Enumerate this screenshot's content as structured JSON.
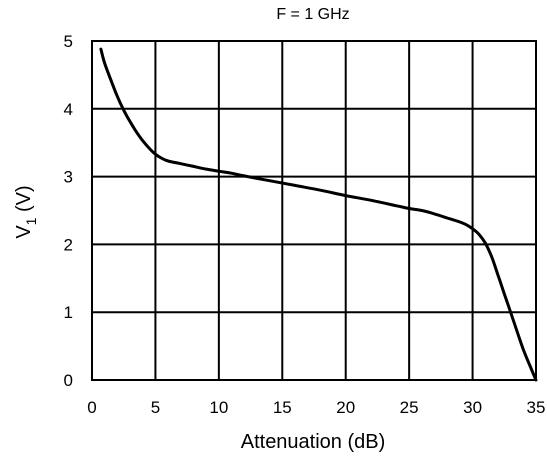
{
  "chart_data": {
    "type": "line",
    "title": "F = 1 GHz",
    "xlabel": "Attenuation (dB)",
    "ylabel": {
      "main": "V",
      "sub": "1",
      "unit": " (V)"
    },
    "xlim": [
      0,
      35
    ],
    "ylim": [
      0,
      5
    ],
    "grid": true,
    "x_ticks": [
      "0",
      "5",
      "10",
      "15",
      "20",
      "25",
      "30",
      "35"
    ],
    "y_ticks": [
      "0",
      "1",
      "2",
      "3",
      "4",
      "5"
    ],
    "series": [
      {
        "color": "#000000",
        "x": [
          0.7,
          1.0,
          1.5,
          2.0,
          2.5,
          3.0,
          3.5,
          4.0,
          4.5,
          5.0,
          5.5,
          6.0,
          7.0,
          8.0,
          9.0,
          10.0,
          11.0,
          12.0,
          14.0,
          16.0,
          18.0,
          20.0,
          22.0,
          24.0,
          25.0,
          26.0,
          27.0,
          28.0,
          29.0,
          29.5,
          30.0,
          30.5,
          31.0,
          31.5,
          32.0,
          32.5,
          33.0,
          33.5,
          34.0,
          34.5,
          35.0
        ],
        "y": [
          4.88,
          4.67,
          4.42,
          4.18,
          3.98,
          3.81,
          3.66,
          3.53,
          3.42,
          3.33,
          3.27,
          3.23,
          3.19,
          3.15,
          3.11,
          3.08,
          3.05,
          3.01,
          2.94,
          2.87,
          2.8,
          2.72,
          2.65,
          2.57,
          2.53,
          2.5,
          2.45,
          2.39,
          2.33,
          2.29,
          2.23,
          2.15,
          2.02,
          1.82,
          1.55,
          1.27,
          1.0,
          0.72,
          0.45,
          0.22,
          0.0
        ]
      }
    ]
  }
}
